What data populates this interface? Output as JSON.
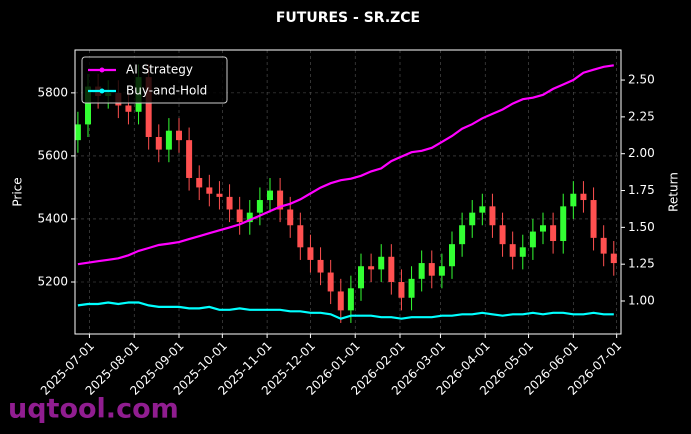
{
  "chart_data": {
    "type": "candlestick",
    "title": "FUTURES - SR.ZCE",
    "ylabel": "Price",
    "y2label": "Return",
    "x": [
      "2025-06-23",
      "2025-06-30",
      "2025-07-07",
      "2025-07-14",
      "2025-07-21",
      "2025-07-28",
      "2025-08-04",
      "2025-08-11",
      "2025-08-18",
      "2025-08-25",
      "2025-09-01",
      "2025-09-08",
      "2025-09-15",
      "2025-09-22",
      "2025-09-29",
      "2025-10-06",
      "2025-10-13",
      "2025-10-20",
      "2025-10-27",
      "2025-11-03",
      "2025-11-10",
      "2025-11-17",
      "2025-11-24",
      "2025-12-01",
      "2025-12-08",
      "2025-12-15",
      "2025-12-22",
      "2025-12-29",
      "2026-01-05",
      "2026-01-12",
      "2026-01-19",
      "2026-01-26",
      "2026-02-02",
      "2026-02-09",
      "2026-02-16",
      "2026-02-23",
      "2026-03-02",
      "2026-03-09",
      "2026-03-16",
      "2026-03-23",
      "2026-03-30",
      "2026-04-06",
      "2026-04-13",
      "2026-04-20",
      "2026-04-27",
      "2026-05-04",
      "2026-05-11",
      "2026-05-18",
      "2026-05-25",
      "2026-06-01",
      "2026-06-08",
      "2026-06-15",
      "2026-06-22",
      "2026-06-29"
    ],
    "open": [
      5650,
      5700,
      5820,
      5790,
      5800,
      5760,
      5740,
      5850,
      5660,
      5620,
      5680,
      5650,
      5530,
      5500,
      5480,
      5470,
      5430,
      5390,
      5420,
      5460,
      5490,
      5430,
      5380,
      5310,
      5270,
      5230,
      5170,
      5110,
      5180,
      5250,
      5240,
      5280,
      5200,
      5150,
      5210,
      5260,
      5220,
      5250,
      5320,
      5380,
      5420,
      5440,
      5380,
      5320,
      5280,
      5310,
      5360,
      5380,
      5330,
      5440,
      5480,
      5460,
      5340,
      5290
    ],
    "high": [
      5740,
      5860,
      5860,
      5840,
      5840,
      5800,
      5890,
      5890,
      5700,
      5720,
      5720,
      5690,
      5570,
      5540,
      5520,
      5510,
      5470,
      5460,
      5500,
      5530,
      5530,
      5470,
      5420,
      5350,
      5310,
      5270,
      5210,
      5220,
      5290,
      5290,
      5320,
      5320,
      5240,
      5250,
      5300,
      5300,
      5290,
      5360,
      5420,
      5460,
      5480,
      5480,
      5420,
      5360,
      5350,
      5400,
      5420,
      5420,
      5480,
      5520,
      5520,
      5500,
      5380,
      5330
    ],
    "low": [
      5610,
      5660,
      5750,
      5750,
      5720,
      5700,
      5700,
      5620,
      5580,
      5580,
      5610,
      5490,
      5460,
      5440,
      5430,
      5390,
      5350,
      5350,
      5380,
      5420,
      5390,
      5340,
      5270,
      5230,
      5190,
      5130,
      5070,
      5070,
      5140,
      5200,
      5200,
      5160,
      5110,
      5110,
      5170,
      5180,
      5180,
      5210,
      5280,
      5340,
      5380,
      5340,
      5280,
      5240,
      5240,
      5270,
      5320,
      5290,
      5290,
      5400,
      5420,
      5300,
      5250,
      5220
    ],
    "close": [
      5700,
      5820,
      5790,
      5800,
      5760,
      5740,
      5850,
      5660,
      5620,
      5680,
      5650,
      5530,
      5500,
      5480,
      5470,
      5430,
      5390,
      5420,
      5460,
      5490,
      5430,
      5380,
      5310,
      5270,
      5230,
      5170,
      5110,
      5180,
      5250,
      5240,
      5280,
      5200,
      5150,
      5210,
      5260,
      5220,
      5250,
      5320,
      5380,
      5420,
      5440,
      5380,
      5320,
      5280,
      5310,
      5360,
      5380,
      5330,
      5440,
      5480,
      5460,
      5340,
      5290,
      5260
    ],
    "up_color": "#33ff33",
    "down_color": "#ff5050",
    "series": [
      {
        "name": "AI Strategy",
        "color": "#ff00ff",
        "axis": "y2",
        "values": [
          1.25,
          1.26,
          1.27,
          1.28,
          1.29,
          1.31,
          1.34,
          1.36,
          1.38,
          1.39,
          1.4,
          1.42,
          1.44,
          1.46,
          1.48,
          1.5,
          1.52,
          1.55,
          1.58,
          1.61,
          1.64,
          1.66,
          1.69,
          1.73,
          1.77,
          1.8,
          1.82,
          1.83,
          1.85,
          1.88,
          1.9,
          1.95,
          1.98,
          2.01,
          2.02,
          2.04,
          2.08,
          2.12,
          2.17,
          2.2,
          2.24,
          2.27,
          2.3,
          2.34,
          2.37,
          2.38,
          2.4,
          2.44,
          2.47,
          2.5,
          2.55,
          2.57,
          2.59,
          2.6
        ]
      },
      {
        "name": "Buy-and-Hold",
        "color": "#00ffff",
        "axis": "y2",
        "values": [
          0.97,
          0.98,
          0.98,
          0.99,
          0.98,
          0.99,
          0.99,
          0.97,
          0.96,
          0.96,
          0.96,
          0.95,
          0.95,
          0.96,
          0.94,
          0.94,
          0.95,
          0.94,
          0.94,
          0.94,
          0.94,
          0.93,
          0.93,
          0.92,
          0.92,
          0.91,
          0.88,
          0.9,
          0.9,
          0.9,
          0.89,
          0.89,
          0.88,
          0.89,
          0.89,
          0.89,
          0.9,
          0.9,
          0.91,
          0.91,
          0.92,
          0.91,
          0.9,
          0.91,
          0.91,
          0.92,
          0.91,
          0.92,
          0.92,
          0.91,
          0.91,
          0.92,
          0.91,
          0.91
        ]
      }
    ],
    "xlim": [
      "2025-06-21",
      "2026-07-04"
    ],
    "xticks": [
      "2025-07-01",
      "2025-08-01",
      "2025-09-01",
      "2025-10-01",
      "2025-11-01",
      "2025-12-01",
      "2026-01-01",
      "2026-02-01",
      "2026-03-01",
      "2026-04-01",
      "2026-05-01",
      "2026-06-01",
      "2026-07-01"
    ],
    "ylim": [
      5035,
      5936
    ],
    "yticks": [
      5200,
      5400,
      5600,
      5800
    ],
    "y2lim": [
      0.776,
      2.704
    ],
    "y2ticks": [
      {
        "value": 1,
        "label": "1.00"
      },
      1.25,
      {
        "value": 1.5,
        "label": "1.50"
      },
      1.75,
      {
        "value": 2,
        "label": "2.00"
      },
      2.25,
      {
        "value": 2.5,
        "label": "2.50"
      }
    ],
    "grid": true,
    "legend": "upper left"
  },
  "watermark": "uqtool.com"
}
